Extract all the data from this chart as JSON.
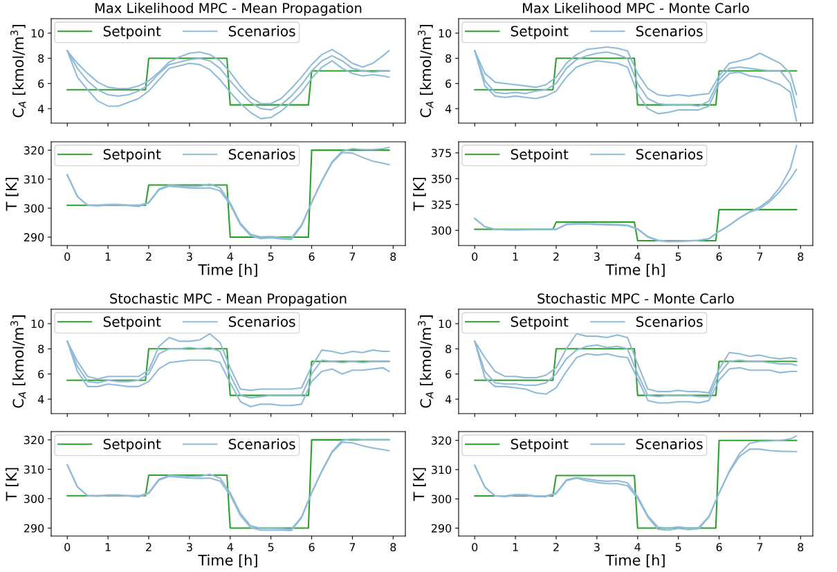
{
  "chart_data": [
    {
      "type": "line",
      "title": "Max Likelihood MPC - Mean Propagation",
      "ylabel": "C$_{A}$ [kmol/m$^{3}$]",
      "legend": "top left",
      "tick_labels": "y",
      "xlim": [
        -0.395,
        8.3
      ],
      "xticks": [
        0,
        1,
        2,
        3,
        4,
        5,
        6,
        7,
        8
      ],
      "ylim": [
        2.85,
        11.15
      ],
      "yticks": [
        4,
        6,
        8,
        10
      ],
      "x": [
        0,
        0.25,
        0.5,
        0.75,
        1,
        1.25,
        1.5,
        1.75,
        2,
        2.25,
        2.5,
        2.75,
        3,
        3.25,
        3.5,
        3.75,
        4,
        4.25,
        4.5,
        4.75,
        5,
        5.25,
        5.5,
        5.75,
        6,
        6.25,
        6.5,
        6.75,
        7,
        7.25,
        7.5,
        7.75,
        7.9
      ],
      "series": [
        {
          "name": "Setpoint",
          "color": "#2ca02c",
          "x": [
            0,
            1.92,
            2.0,
            3.92,
            4.0,
            5.92,
            6.0,
            7.9
          ],
          "values": [
            5.5,
            5.5,
            8,
            8,
            4.3,
            4.3,
            7,
            7
          ]
        },
        {
          "name": "Scenarios",
          "color": "#8fbbd9",
          "values": [
            8.6,
            7.6,
            6.8,
            6.1,
            5.7,
            5.6,
            5.6,
            5.8,
            6.2,
            6.9,
            7.7,
            8.1,
            8.4,
            8.5,
            8.3,
            7.8,
            6.9,
            5.8,
            4.9,
            4.4,
            4.4,
            4.8,
            5.6,
            6.5,
            7.5,
            8.3,
            8.7,
            8.2,
            7.6,
            7.3,
            7.6,
            8.2,
            8.6
          ]
        },
        {
          "color": "#8fbbd9",
          "values": [
            8.6,
            7.2,
            6.2,
            5.5,
            5.1,
            5.0,
            5.1,
            5.4,
            5.9,
            6.8,
            7.5,
            7.7,
            7.9,
            8.0,
            7.8,
            7.2,
            6.2,
            5.3,
            4.5,
            4.0,
            3.9,
            4.3,
            5.0,
            5.9,
            7.0,
            7.8,
            8.2,
            7.8,
            7.2,
            7.0,
            6.9,
            7.0,
            7.0
          ]
        },
        {
          "color": "#8fbbd9",
          "values": [
            8.6,
            6.5,
            5.5,
            4.6,
            4.2,
            4.2,
            4.5,
            4.8,
            5.4,
            6.3,
            7.2,
            7.4,
            7.6,
            7.5,
            7.1,
            6.3,
            5.3,
            4.4,
            3.7,
            3.2,
            3.3,
            3.8,
            4.5,
            5.3,
            6.4,
            7.3,
            7.8,
            7.2,
            6.8,
            6.6,
            6.7,
            6.6,
            6.5
          ]
        }
      ]
    },
    {
      "type": "line",
      "xlabel": "Time [h]",
      "ylabel": "T [K]",
      "legend": "top left",
      "xlim": [
        -0.395,
        8.3
      ],
      "xticks": [
        0,
        1,
        2,
        3,
        4,
        5,
        6,
        7,
        8
      ],
      "ylim": [
        287.1,
        322.9
      ],
      "yticks": [
        290,
        300,
        310,
        320
      ],
      "x": [
        0,
        0.25,
        0.5,
        0.75,
        1,
        1.25,
        1.5,
        1.75,
        2,
        2.25,
        2.5,
        2.75,
        3,
        3.25,
        3.5,
        3.75,
        4,
        4.25,
        4.5,
        4.75,
        5,
        5.25,
        5.5,
        5.75,
        6,
        6.25,
        6.5,
        6.75,
        7,
        7.25,
        7.5,
        7.75,
        7.9
      ],
      "series": [
        {
          "name": "Setpoint",
          "color": "#2ca02c",
          "x": [
            0,
            1.92,
            2.0,
            3.92,
            4.0,
            5.92,
            6.0,
            7.9
          ],
          "values": [
            301,
            301,
            308,
            308,
            290,
            290,
            320,
            320
          ]
        },
        {
          "name": "Scenarios",
          "color": "#8fbbd9",
          "values": [
            311.5,
            304,
            301,
            301,
            301.3,
            301.3,
            301,
            300.9,
            302,
            306.6,
            307.9,
            307.7,
            307.5,
            307.6,
            308.3,
            307,
            301.8,
            294.8,
            291,
            290,
            290.2,
            289.8,
            289.7,
            294.2,
            302,
            309.5,
            316,
            319.7,
            320.5,
            320.2,
            320.2,
            320.5,
            321
          ]
        },
        {
          "color": "#8fbbd9",
          "values": [
            311.5,
            304,
            301,
            300.8,
            301.1,
            301.1,
            300.9,
            300.6,
            301.8,
            306.3,
            307.6,
            307.3,
            307,
            306.9,
            307,
            306,
            301.2,
            294.3,
            290.5,
            289.5,
            289.8,
            289.4,
            289.2,
            293.8,
            302,
            309.3,
            315.7,
            319.2,
            319,
            317.5,
            316.2,
            315.5,
            315
          ]
        }
      ]
    },
    {
      "type": "line",
      "title": "Max Likelihood MPC - Monte Carlo",
      "ylabel": "C$_{A}$ [kmol/m$^{3}$]",
      "legend": "top left",
      "tick_labels": "y",
      "xlim": [
        -0.395,
        8.3
      ],
      "xticks": [
        0,
        1,
        2,
        3,
        4,
        5,
        6,
        7,
        8
      ],
      "ylim": [
        2.85,
        11.15
      ],
      "yticks": [
        4,
        6,
        8,
        10
      ],
      "x": [
        0,
        0.25,
        0.5,
        0.75,
        1,
        1.25,
        1.5,
        1.75,
        2,
        2.25,
        2.5,
        2.75,
        3,
        3.25,
        3.5,
        3.75,
        4,
        4.25,
        4.5,
        4.75,
        5,
        5.25,
        5.5,
        5.75,
        6,
        6.25,
        6.5,
        6.75,
        7,
        7.25,
        7.5,
        7.75,
        7.9
      ],
      "series": [
        {
          "name": "Setpoint",
          "color": "#2ca02c",
          "x": [
            0,
            1.92,
            2.0,
            3.92,
            4.0,
            5.92,
            6.0,
            7.9
          ],
          "values": [
            5.5,
            5.5,
            8,
            8,
            4.3,
            4.3,
            7,
            7
          ]
        },
        {
          "name": "Scenarios",
          "color": "#8fbbd9",
          "values": [
            8.6,
            6.8,
            6.1,
            6.0,
            5.9,
            5.8,
            5.7,
            5.9,
            6.5,
            7.6,
            8.3,
            8.7,
            8.8,
            8.9,
            8.8,
            8.6,
            6.8,
            5.6,
            5.1,
            5.0,
            5.1,
            5.0,
            5.1,
            5.2,
            6.6,
            7.6,
            7.8,
            8.0,
            8.4,
            8.0,
            7.6,
            6.8,
            5.1
          ]
        },
        {
          "color": "#8fbbd9",
          "values": [
            8.6,
            6.2,
            5.3,
            5.2,
            5.3,
            5.2,
            5.4,
            5.5,
            6.0,
            7.2,
            7.9,
            8.2,
            8.4,
            8.5,
            8.3,
            8.0,
            6.0,
            4.8,
            4.4,
            4.3,
            4.3,
            4.3,
            4.2,
            4.6,
            6.3,
            7.2,
            7.3,
            7.2,
            7.1,
            7.0,
            7.0,
            6.0,
            4.1
          ]
        },
        {
          "color": "#8fbbd9",
          "values": [
            8.6,
            5.8,
            5.0,
            4.9,
            5.0,
            4.9,
            4.8,
            5.0,
            5.4,
            6.5,
            7.3,
            7.6,
            7.8,
            7.7,
            7.6,
            7.3,
            5.2,
            4.0,
            3.6,
            3.7,
            3.9,
            3.9,
            3.9,
            4.2,
            6.0,
            6.8,
            6.9,
            6.6,
            6.5,
            6.2,
            5.9,
            5.3,
            3.0
          ]
        }
      ]
    },
    {
      "type": "line",
      "xlabel": "Time [h]",
      "ylabel": "T [K]",
      "legend": "top left",
      "xlim": [
        -0.395,
        8.3
      ],
      "xticks": [
        0,
        1,
        2,
        3,
        4,
        5,
        6,
        7,
        8
      ],
      "ylim": [
        285.3,
        385.7
      ],
      "yticks": [
        300,
        325,
        350,
        375
      ],
      "x": [
        0,
        0.25,
        0.5,
        0.75,
        1,
        1.25,
        1.5,
        1.75,
        2,
        2.25,
        2.5,
        2.75,
        3,
        3.25,
        3.5,
        3.75,
        4,
        4.25,
        4.5,
        4.75,
        5,
        5.25,
        5.5,
        5.75,
        6,
        6.25,
        6.5,
        6.75,
        7,
        7.25,
        7.5,
        7.75,
        7.9
      ],
      "series": [
        {
          "name": "Setpoint",
          "color": "#2ca02c",
          "x": [
            0,
            1.92,
            2.0,
            3.92,
            4.0,
            5.92,
            6.0,
            7.9
          ],
          "values": [
            301,
            301,
            308,
            308,
            290,
            290,
            320,
            320
          ]
        },
        {
          "name": "Scenarios",
          "color": "#8fbbd9",
          "values": [
            311.5,
            303.5,
            301,
            300.5,
            300.5,
            300.7,
            301,
            301,
            301,
            306,
            306.5,
            306.5,
            306,
            305.8,
            305.5,
            305,
            301.5,
            294,
            290.5,
            289.5,
            289.7,
            290,
            290.5,
            292,
            299,
            305,
            312,
            318,
            322.5,
            330,
            342,
            360,
            382
          ]
        },
        {
          "color": "#8fbbd9",
          "values": [
            311.5,
            303.5,
            301,
            300.5,
            300.4,
            300.5,
            300.8,
            300.8,
            300.8,
            305.5,
            306,
            306,
            305.5,
            305.3,
            305,
            304.5,
            301,
            293.5,
            290,
            289,
            289.2,
            289.6,
            290.2,
            291.8,
            299,
            305,
            312,
            317.5,
            321,
            328,
            338,
            350,
            359
          ]
        }
      ]
    },
    {
      "type": "line",
      "title": "Stochastic MPC - Mean Propagation",
      "ylabel": "C$_{A}$ [kmol/m$^{3}$]",
      "legend": "top left",
      "tick_labels": "y",
      "xlim": [
        -0.395,
        8.3
      ],
      "xticks": [
        0,
        1,
        2,
        3,
        4,
        5,
        6,
        7,
        8
      ],
      "ylim": [
        2.85,
        11.15
      ],
      "yticks": [
        4,
        6,
        8,
        10
      ],
      "x": [
        0,
        0.25,
        0.5,
        0.75,
        1,
        1.25,
        1.5,
        1.75,
        2,
        2.25,
        2.5,
        2.75,
        3,
        3.25,
        3.5,
        3.75,
        4,
        4.25,
        4.5,
        4.75,
        5,
        5.25,
        5.5,
        5.75,
        6,
        6.25,
        6.5,
        6.75,
        7,
        7.25,
        7.5,
        7.75,
        7.9
      ],
      "series": [
        {
          "name": "Setpoint",
          "color": "#2ca02c",
          "x": [
            0,
            1.92,
            2.0,
            3.92,
            4.0,
            5.92,
            6.0,
            7.9
          ],
          "values": [
            5.5,
            5.5,
            8,
            8,
            4.3,
            4.3,
            7,
            7
          ]
        },
        {
          "name": "Scenarios",
          "color": "#8fbbd9",
          "values": [
            8.6,
            7.0,
            5.8,
            5.6,
            5.8,
            5.8,
            5.8,
            5.8,
            6.3,
            8.2,
            8.9,
            8.6,
            8.6,
            8.7,
            9.2,
            8.5,
            6.5,
            4.8,
            4.7,
            4.8,
            4.8,
            4.8,
            4.8,
            4.9,
            6.6,
            7.9,
            7.8,
            7.6,
            7.8,
            7.7,
            7.9,
            7.8,
            7.8
          ]
        },
        {
          "color": "#8fbbd9",
          "values": [
            8.6,
            6.6,
            5.4,
            5.3,
            5.5,
            5.4,
            5.4,
            5.5,
            6.0,
            7.6,
            8.0,
            8.0,
            8.1,
            8.0,
            8.1,
            7.8,
            5.9,
            4.3,
            4.1,
            4.2,
            4.3,
            4.3,
            4.3,
            4.3,
            6.0,
            7.1,
            7.0,
            6.9,
            7.0,
            6.9,
            7.0,
            7.0,
            7.0
          ]
        },
        {
          "color": "#8fbbd9",
          "values": [
            8.6,
            6.2,
            5.0,
            5.0,
            5.2,
            5.1,
            5.0,
            5.0,
            5.4,
            6.4,
            6.9,
            7.0,
            7.1,
            7.1,
            7.1,
            6.9,
            5.3,
            3.8,
            3.4,
            3.6,
            3.6,
            3.5,
            3.5,
            3.6,
            5.4,
            6.2,
            6.4,
            6.0,
            6.3,
            6.3,
            6.4,
            6.5,
            6.2
          ]
        }
      ]
    },
    {
      "type": "line",
      "xlabel": "Time [h]",
      "ylabel": "T [K]",
      "legend": "top left",
      "xlim": [
        -0.395,
        8.3
      ],
      "xticks": [
        0,
        1,
        2,
        3,
        4,
        5,
        6,
        7,
        8
      ],
      "ylim": [
        287.3,
        322.8
      ],
      "yticks": [
        290,
        300,
        310,
        320
      ],
      "x": [
        0,
        0.25,
        0.5,
        0.75,
        1,
        1.25,
        1.5,
        1.75,
        2,
        2.25,
        2.5,
        2.75,
        3,
        3.25,
        3.5,
        3.75,
        4,
        4.25,
        4.5,
        4.75,
        5,
        5.25,
        5.5,
        5.75,
        6,
        6.25,
        6.5,
        6.75,
        7,
        7.25,
        7.5,
        7.75,
        7.9
      ],
      "series": [
        {
          "name": "Setpoint",
          "color": "#2ca02c",
          "x": [
            0,
            1.92,
            2.0,
            3.92,
            4.0,
            5.92,
            6.0,
            7.9
          ],
          "values": [
            301,
            301,
            308,
            308,
            290,
            290,
            320,
            320
          ]
        },
        {
          "name": "Scenarios",
          "color": "#8fbbd9",
          "values": [
            311.5,
            304,
            301,
            301,
            301.3,
            301.3,
            301,
            300.9,
            302,
            306.6,
            307.9,
            307.7,
            307.5,
            307.6,
            308.3,
            307,
            302,
            295,
            290.8,
            289.9,
            289.9,
            289.8,
            289.6,
            293.8,
            302,
            309.5,
            316,
            319.8,
            320.2,
            320,
            320,
            320,
            320
          ]
        },
        {
          "color": "#8fbbd9",
          "values": [
            311.5,
            304,
            301,
            300.8,
            301.1,
            301.1,
            300.9,
            300.6,
            301.8,
            306.3,
            307.6,
            307.3,
            307,
            306.9,
            307,
            306,
            301.2,
            294.3,
            290.2,
            289.3,
            289.3,
            289.3,
            289.2,
            293.5,
            302,
            309.3,
            315.7,
            319.2,
            319,
            318,
            317.2,
            316.7,
            316.3
          ]
        }
      ]
    },
    {
      "type": "line",
      "title": "Stochastic MPC - Monte Carlo",
      "ylabel": "C$_{A}$ [kmol/m$^{3}$]",
      "legend": "top left",
      "tick_labels": "y",
      "xlim": [
        -0.395,
        8.3
      ],
      "xticks": [
        0,
        1,
        2,
        3,
        4,
        5,
        6,
        7,
        8
      ],
      "ylim": [
        2.85,
        11.15
      ],
      "yticks": [
        4,
        6,
        8,
        10
      ],
      "x": [
        0,
        0.25,
        0.5,
        0.75,
        1,
        1.25,
        1.5,
        1.75,
        2,
        2.25,
        2.5,
        2.75,
        3,
        3.25,
        3.5,
        3.75,
        4,
        4.25,
        4.5,
        4.75,
        5,
        5.25,
        5.5,
        5.75,
        6,
        6.25,
        6.5,
        6.75,
        7,
        7.25,
        7.5,
        7.75,
        7.9
      ],
      "series": [
        {
          "name": "Setpoint",
          "color": "#2ca02c",
          "x": [
            0,
            1.92,
            2.0,
            3.92,
            4.0,
            5.92,
            6.0,
            7.9
          ],
          "values": [
            5.5,
            5.5,
            8,
            8,
            4.3,
            4.3,
            7,
            7
          ]
        },
        {
          "name": "Scenarios",
          "color": "#8fbbd9",
          "values": [
            8.6,
            7.3,
            6.2,
            5.8,
            5.8,
            5.7,
            5.7,
            5.9,
            6.5,
            8.0,
            9.2,
            9.0,
            9.0,
            8.9,
            9.1,
            8.9,
            6.8,
            4.8,
            4.6,
            4.6,
            4.7,
            4.6,
            4.6,
            4.5,
            6.4,
            7.7,
            7.6,
            7.4,
            7.5,
            7.3,
            7.2,
            7.3,
            7.2
          ]
        },
        {
          "color": "#8fbbd9",
          "values": [
            8.6,
            6.2,
            5.3,
            5.2,
            5.2,
            5.1,
            5.1,
            5.3,
            6.0,
            7.2,
            7.9,
            8.2,
            8.3,
            8.1,
            8.2,
            8.0,
            6.0,
            4.3,
            4.2,
            4.3,
            4.3,
            4.3,
            4.2,
            4.2,
            6.0,
            7.0,
            7.1,
            7.0,
            7.0,
            6.9,
            6.8,
            6.8,
            6.7
          ]
        },
        {
          "color": "#8fbbd9",
          "values": [
            8.6,
            5.7,
            5.0,
            5.0,
            4.9,
            4.8,
            4.5,
            4.4,
            4.9,
            6.2,
            7.3,
            7.6,
            7.5,
            7.6,
            7.4,
            7.3,
            5.6,
            3.9,
            3.7,
            3.7,
            3.8,
            3.8,
            3.7,
            3.9,
            5.5,
            6.4,
            6.5,
            6.3,
            6.3,
            6.3,
            6.1,
            6.2,
            6.2
          ]
        }
      ]
    },
    {
      "type": "line",
      "xlabel": "Time [h]",
      "ylabel": "T [K]",
      "legend": "top left",
      "xlim": [
        -0.395,
        8.3
      ],
      "xticks": [
        0,
        1,
        2,
        3,
        4,
        5,
        6,
        7,
        8
      ],
      "ylim": [
        287.3,
        323
      ],
      "yticks": [
        290,
        300,
        310,
        320
      ],
      "x": [
        0,
        0.25,
        0.5,
        0.75,
        1,
        1.25,
        1.5,
        1.75,
        2,
        2.25,
        2.5,
        2.75,
        3,
        3.25,
        3.5,
        3.75,
        4,
        4.25,
        4.5,
        4.75,
        5,
        5.25,
        5.5,
        5.75,
        6,
        6.25,
        6.5,
        6.75,
        7,
        7.25,
        7.5,
        7.75,
        7.9
      ],
      "series": [
        {
          "name": "Setpoint",
          "color": "#2ca02c",
          "x": [
            0,
            1.92,
            2.0,
            3.92,
            4.0,
            5.92,
            6.0,
            7.9
          ],
          "values": [
            301,
            301,
            308,
            308,
            290,
            290,
            320,
            320
          ]
        },
        {
          "name": "Scenarios",
          "color": "#8fbbd9",
          "values": [
            311.5,
            304,
            301,
            301,
            301.5,
            301.4,
            301,
            301,
            302,
            306.5,
            307.3,
            306.8,
            306.3,
            306,
            306.2,
            305.5,
            300.8,
            294.2,
            290.3,
            290,
            290.4,
            290,
            290.2,
            294,
            302,
            309.5,
            315.5,
            319,
            319.7,
            319.8,
            320,
            320.5,
            321.5
          ]
        },
        {
          "color": "#8fbbd9",
          "values": [
            311.5,
            304,
            301,
            300.8,
            301.2,
            301.2,
            300.8,
            300.8,
            301.8,
            306.2,
            307.1,
            306.2,
            305.6,
            305.2,
            305.2,
            304.5,
            300.2,
            293.8,
            289.6,
            289.3,
            289.9,
            289.5,
            289.8,
            293.8,
            302,
            309.2,
            314.5,
            317,
            317,
            316.5,
            316.3,
            316.2,
            316.2
          ]
        }
      ]
    }
  ]
}
